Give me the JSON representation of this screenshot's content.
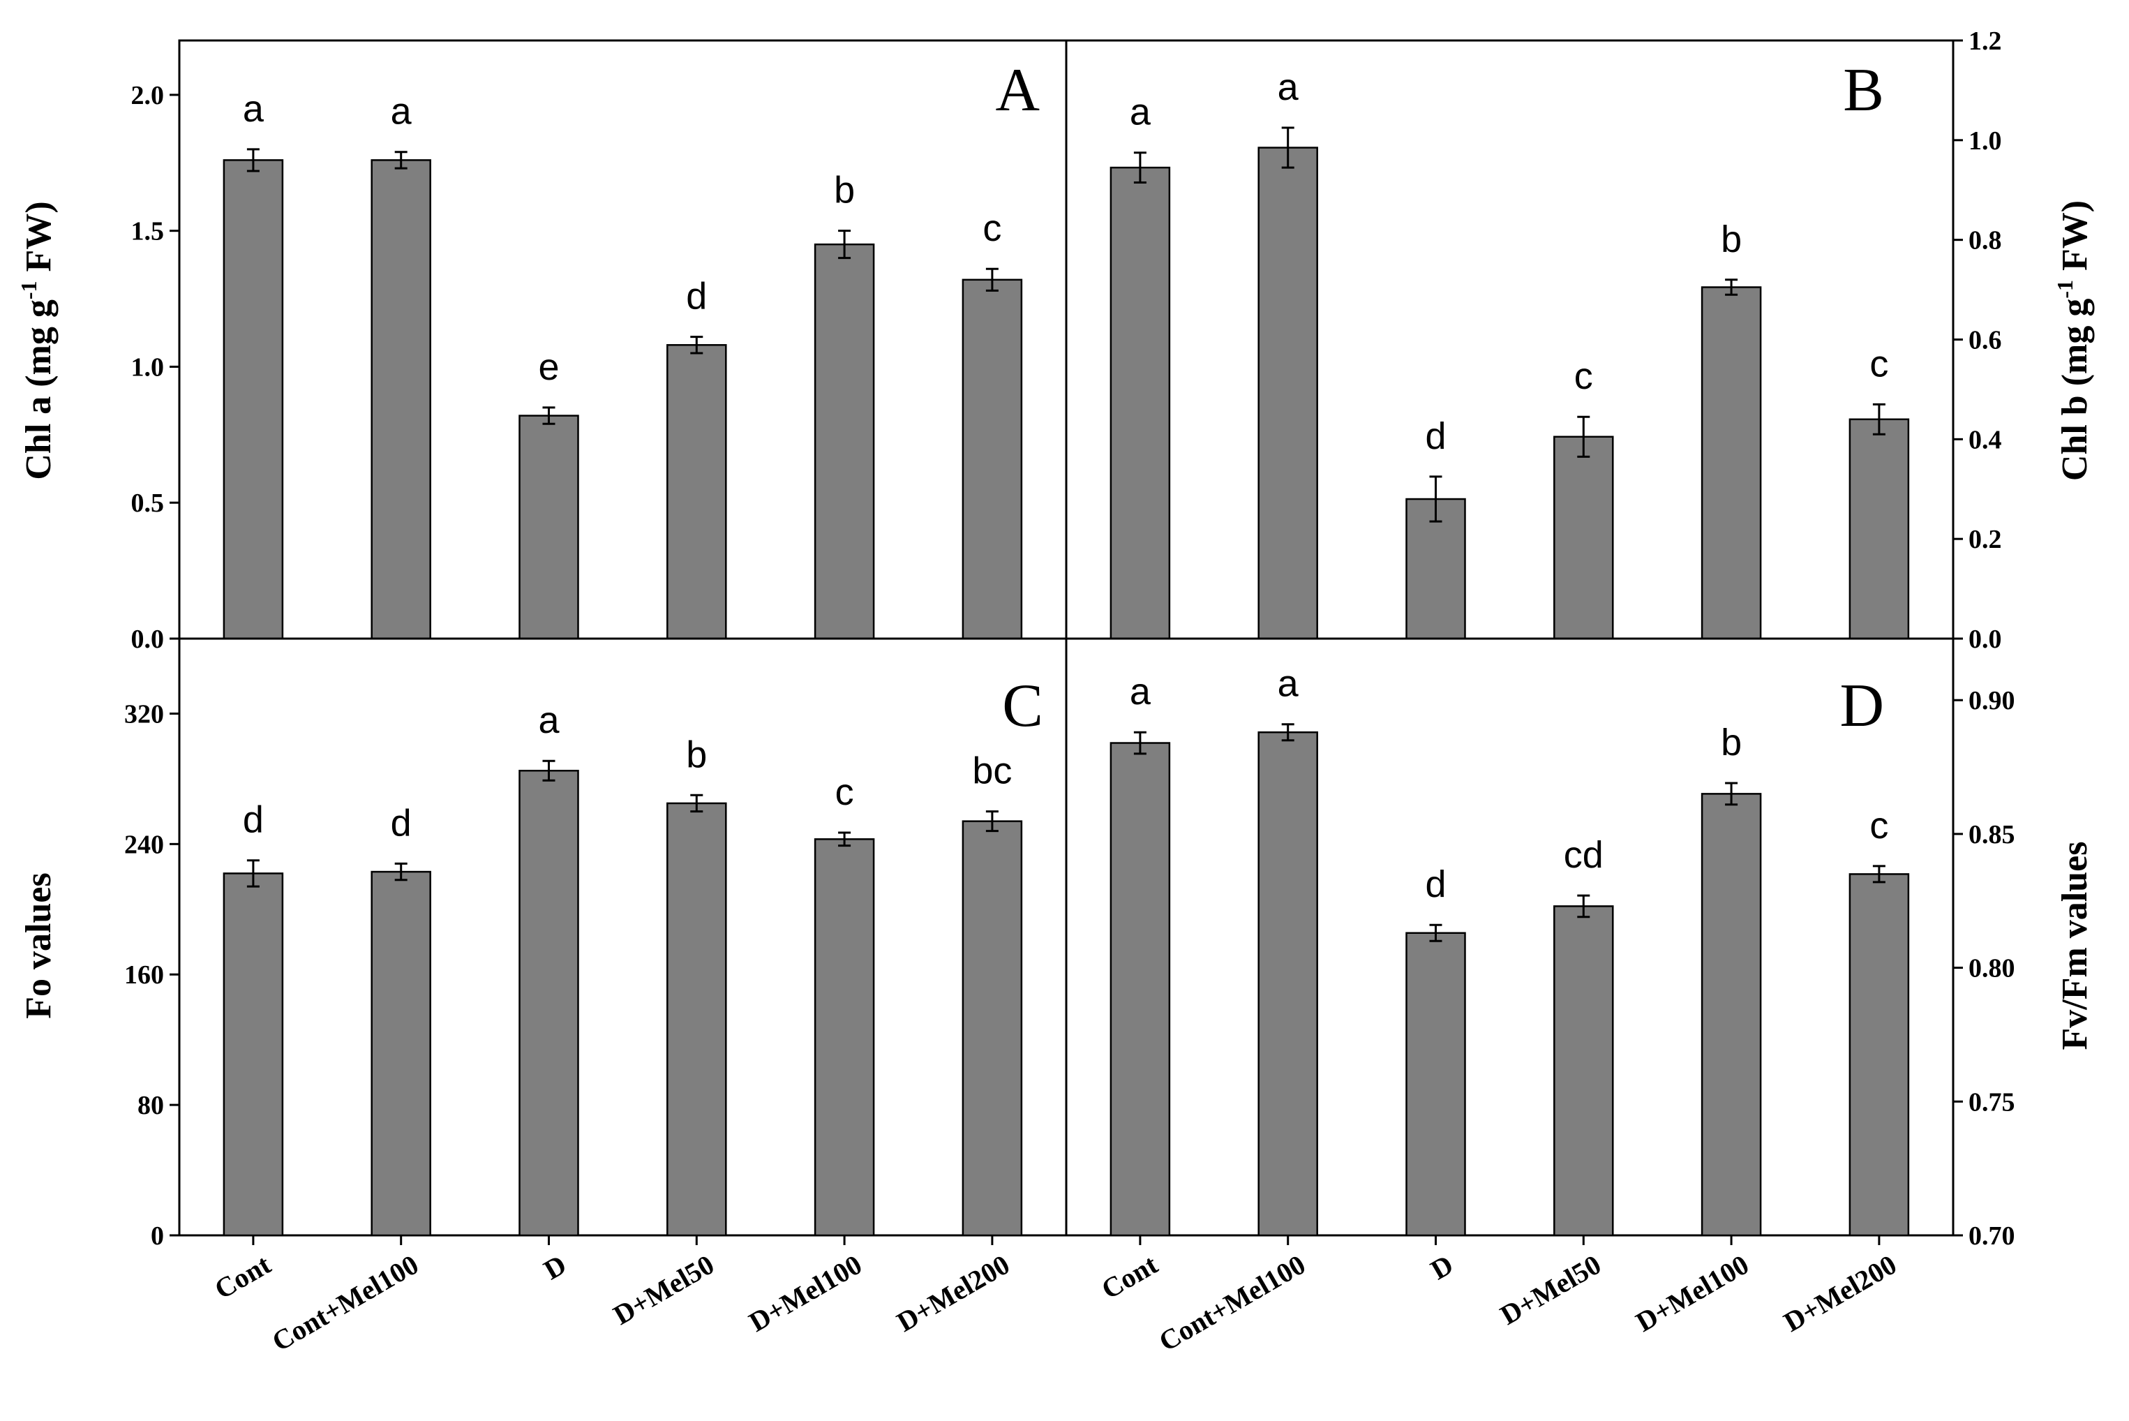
{
  "figure": {
    "categories": [
      "Cont",
      "Cont+Mel100",
      "D",
      "D+Mel50",
      "D+Mel100",
      "D+Mel200"
    ],
    "bar_color": "#7f7f7f",
    "axis_titles": {
      "A_y_main": "Chl a (mg g",
      "A_y_sup": "-1",
      "A_y_tail": " FW)",
      "B_y_main": "Chl b (mg g",
      "B_y_sup": "-1",
      "B_y_tail": " FW)",
      "C_y": "Fo values",
      "D_y": "Fv/Fm values"
    }
  },
  "chart_data": [
    {
      "panel": "A",
      "type": "bar",
      "categories": [
        "Cont",
        "Cont+Mel100",
        "D",
        "D+Mel50",
        "D+Mel100",
        "D+Mel200"
      ],
      "values": [
        1.76,
        1.76,
        0.82,
        1.08,
        1.45,
        1.32
      ],
      "errors": [
        0.04,
        0.03,
        0.03,
        0.03,
        0.05,
        0.04
      ],
      "significance": [
        "a",
        "a",
        "e",
        "d",
        "b",
        "c"
      ],
      "ylabel": "Chl a (mg g-1 FW)",
      "ylim": [
        0,
        2.2
      ],
      "yticks": [
        "0.0",
        "0.5",
        "1.0",
        "1.5",
        "2.0"
      ],
      "ytick_values": [
        0,
        0.5,
        1.0,
        1.5,
        2.0
      ],
      "y_axis_side": "left"
    },
    {
      "panel": "B",
      "type": "bar",
      "categories": [
        "Cont",
        "Cont+Mel100",
        "D",
        "D+Mel50",
        "D+Mel100",
        "D+Mel200"
      ],
      "values": [
        0.945,
        0.985,
        0.28,
        0.405,
        0.705,
        0.44
      ],
      "errors": [
        0.03,
        0.04,
        0.045,
        0.04,
        0.015,
        0.03
      ],
      "significance": [
        "a",
        "a",
        "d",
        "c",
        "b",
        "c"
      ],
      "ylabel": "Chl b (mg g-1 FW)",
      "ylim": [
        0,
        1.2
      ],
      "yticks": [
        "0.0",
        "0.2",
        "0.4",
        "0.6",
        "0.8",
        "1.0",
        "1.2"
      ],
      "ytick_values": [
        0,
        0.2,
        0.4,
        0.6,
        0.8,
        1.0,
        1.2
      ],
      "y_axis_side": "right"
    },
    {
      "panel": "C",
      "type": "bar",
      "categories": [
        "Cont",
        "Cont+Mel100",
        "D",
        "D+Mel50",
        "D+Mel100",
        "D+Mel200"
      ],
      "values": [
        222,
        223,
        285,
        265,
        243,
        254
      ],
      "errors": [
        8,
        5,
        6,
        5,
        4,
        6
      ],
      "significance": [
        "d",
        "d",
        "a",
        "b",
        "c",
        "bc"
      ],
      "ylabel": "Fo values",
      "ylim": [
        0,
        366
      ],
      "yticks": [
        "0",
        "80",
        "160",
        "240",
        "320"
      ],
      "ytick_values": [
        0,
        80,
        160,
        240,
        320
      ],
      "y_axis_side": "left"
    },
    {
      "panel": "D",
      "type": "bar",
      "categories": [
        "Cont",
        "Cont+Mel100",
        "D",
        "D+Mel50",
        "D+Mel100",
        "D+Mel200"
      ],
      "values": [
        0.884,
        0.888,
        0.813,
        0.823,
        0.865,
        0.835
      ],
      "errors": [
        0.004,
        0.003,
        0.003,
        0.004,
        0.004,
        0.003
      ],
      "significance": [
        "a",
        "a",
        "d",
        "cd",
        "b",
        "c"
      ],
      "ylabel": "Fv/Fm values",
      "ylim": [
        0.7,
        0.923
      ],
      "yticks": [
        "0.70",
        "0.75",
        "0.80",
        "0.85",
        "0.90"
      ],
      "ytick_values": [
        0.7,
        0.75,
        0.8,
        0.85,
        0.9
      ],
      "y_axis_side": "right"
    }
  ]
}
